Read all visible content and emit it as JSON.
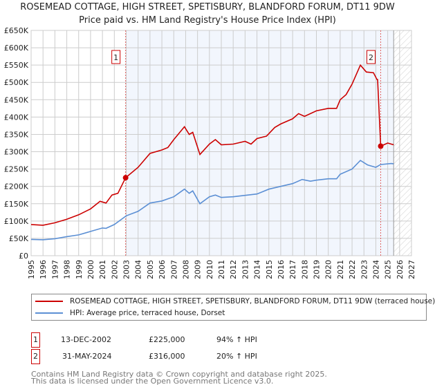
{
  "title": "ROSEMEAD COTTAGE, HIGH STREET, SPETISBURY, BLANDFORD FORUM, DT11 9DW",
  "subtitle": "Price paid vs. HM Land Registry's House Price Index (HPI)",
  "chart_data": {
    "type": "line",
    "xlim": [
      1995,
      2027
    ],
    "ylim": [
      0,
      650000
    ],
    "x_ticks": [
      "1995",
      "1996",
      "1997",
      "1998",
      "1999",
      "2000",
      "2001",
      "2002",
      "2003",
      "2004",
      "2005",
      "2006",
      "2007",
      "2008",
      "2009",
      "2010",
      "2011",
      "2012",
      "2013",
      "2014",
      "2015",
      "2016",
      "2017",
      "2018",
      "2019",
      "2020",
      "2021",
      "2022",
      "2023",
      "2024",
      "2025",
      "2026",
      "2027"
    ],
    "y_ticks": [
      "£0",
      "£50K",
      "£100K",
      "£150K",
      "£200K",
      "£250K",
      "£300K",
      "£350K",
      "£400K",
      "£450K",
      "£500K",
      "£550K",
      "£600K",
      "£650K"
    ],
    "grid": true,
    "shaded_range": [
      2002.95,
      2025.5
    ],
    "hatched_range": [
      2025.5,
      2027
    ],
    "series": [
      {
        "name": "ROSEMEAD COTTAGE, HIGH STREET, SPETISBURY, BLANDFORD FORUM, DT11 9DW (terraced house)",
        "color": "#cc0000",
        "x": [
          1995,
          1996,
          1997,
          1998,
          1999,
          2000,
          2000.8,
          2001.3,
          2001.8,
          2002.3,
          2002.95,
          2004,
          2005,
          2006,
          2006.5,
          2007,
          2007.9,
          2008.3,
          2008.6,
          2009.2,
          2010,
          2010.5,
          2011,
          2012,
          2013,
          2013.5,
          2014,
          2014.8,
          2015.5,
          2016,
          2017,
          2017.5,
          2018,
          2019,
          2020,
          2020.7,
          2021,
          2021.5,
          2022,
          2022.7,
          2023.2,
          2023.8,
          2024.1,
          2024.15,
          2024.41,
          2025,
          2025.5
        ],
        "y": [
          90000,
          88000,
          95000,
          105000,
          118000,
          135000,
          157000,
          152000,
          175000,
          180000,
          225000,
          255000,
          295000,
          305000,
          312000,
          335000,
          372000,
          350000,
          356000,
          292000,
          322000,
          335000,
          320000,
          322000,
          330000,
          322000,
          338000,
          345000,
          370000,
          380000,
          395000,
          410000,
          402000,
          418000,
          425000,
          425000,
          450000,
          465000,
          495000,
          550000,
          530000,
          528000,
          508000,
          508000,
          316000,
          325000,
          320000
        ]
      },
      {
        "name": "HPI: Average price, terraced house, Dorset",
        "color": "#5b8fd4",
        "x": [
          1995,
          1996,
          1997,
          1998,
          1999,
          2000,
          2001,
          2001.3,
          2002,
          2003,
          2004,
          2005,
          2006,
          2007,
          2007.9,
          2008.3,
          2008.6,
          2009.2,
          2010,
          2010.5,
          2011,
          2012,
          2013,
          2014,
          2015,
          2016,
          2017,
          2017.8,
          2018.5,
          2019,
          2020,
          2020.7,
          2021,
          2022,
          2022.7,
          2023.3,
          2024,
          2024.4,
          2025.3,
          2025.5
        ],
        "y": [
          47000,
          46000,
          49000,
          55000,
          60000,
          70000,
          80000,
          79000,
          90000,
          115000,
          128000,
          152000,
          158000,
          170000,
          192000,
          180000,
          187000,
          150000,
          170000,
          175000,
          168000,
          170000,
          174000,
          178000,
          192000,
          200000,
          208000,
          220000,
          215000,
          218000,
          222000,
          222000,
          235000,
          250000,
          275000,
          262000,
          255000,
          263000,
          266000,
          265000
        ]
      }
    ],
    "annotations": [
      {
        "label": "1",
        "x": 2002.95,
        "y": 225000
      },
      {
        "label": "2",
        "x": 2024.41,
        "y": 316000
      }
    ]
  },
  "legend": {
    "red_label": "ROSEMEAD COTTAGE, HIGH STREET, SPETISBURY, BLANDFORD FORUM, DT11 9DW (terraced house)",
    "blue_label": "HPI: Average price, terraced house, Dorset"
  },
  "transactions": [
    {
      "num": "1",
      "date": "13-DEC-2002",
      "price": "£225,000",
      "hpi": "94% ↑ HPI"
    },
    {
      "num": "2",
      "date": "31-MAY-2024",
      "price": "£316,000",
      "hpi": "20% ↑ HPI"
    }
  ],
  "footer": {
    "line1": "Contains HM Land Registry data © Crown copyright and database right 2025.",
    "line2": "This data is licensed under the Open Government Licence v3.0."
  }
}
